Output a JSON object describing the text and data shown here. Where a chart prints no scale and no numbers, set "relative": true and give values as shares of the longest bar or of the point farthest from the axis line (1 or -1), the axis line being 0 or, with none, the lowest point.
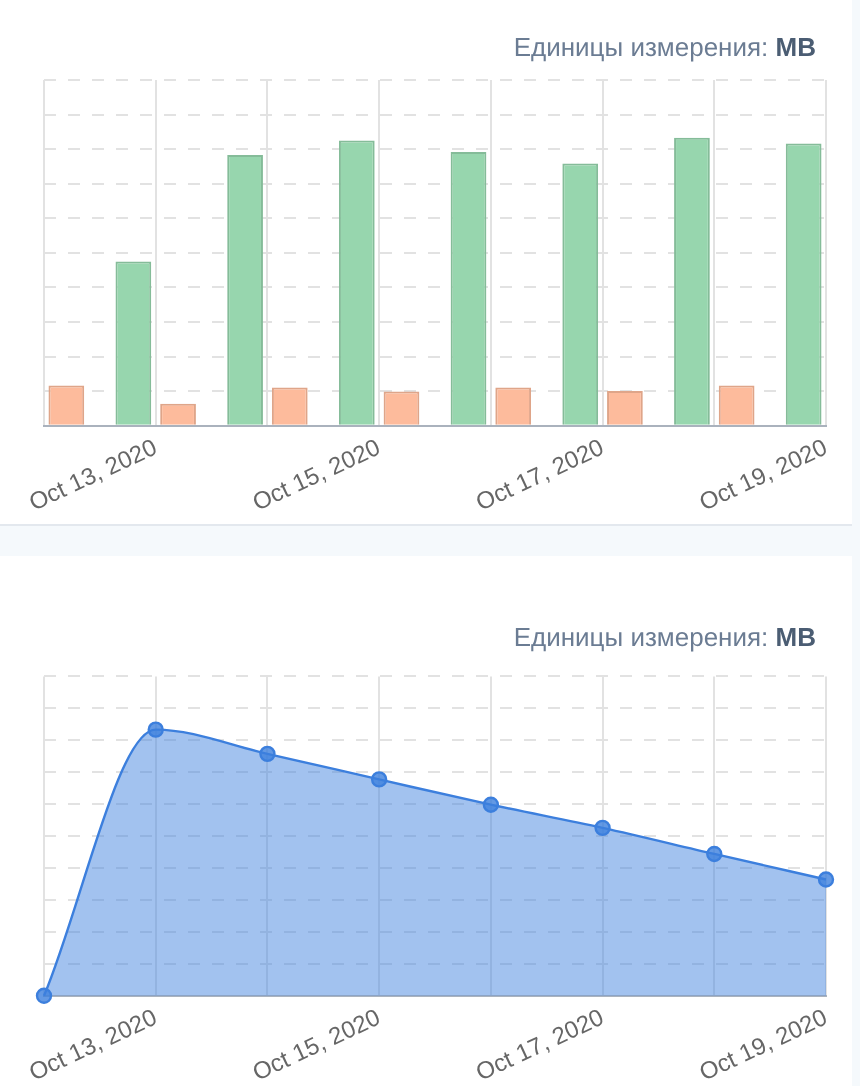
{
  "chart_data": [
    {
      "type": "bar",
      "relative": true,
      "grid": true,
      "annotations": [
        "Единицы измерения:",
        "MB"
      ],
      "categories": [
        null,
        "Oct 13, 2020",
        null,
        "Oct 15, 2020",
        null,
        "Oct 17, 2020",
        null,
        "Oct 19, 2020"
      ],
      "series": [
        {
          "color": "#97d6ae",
          "values": [
            null,
            0.57,
            0.94,
            0.99,
            0.95,
            0.91,
            1,
            0.98
          ]
        },
        {
          "color": "#fdbb9c",
          "values": [
            0.14,
            0.077,
            0.133,
            0.119,
            0.133,
            0.121,
            0.14,
            null
          ]
        }
      ]
    },
    {
      "type": "area",
      "relative": true,
      "grid": true,
      "marker": "circle",
      "annotations": [
        "Единицы измерения:",
        "MB"
      ],
      "categories": [
        null,
        "Oct 13, 2020",
        null,
        "Oct 15, 2020",
        null,
        "Oct 17, 2020",
        null,
        "Oct 19, 2020"
      ],
      "series": [
        {
          "color": "#3c7fdd",
          "values": [
            0,
            1,
            0.909,
            0.813,
            0.718,
            0.631,
            0.533,
            0.437
          ]
        }
      ]
    }
  ]
}
